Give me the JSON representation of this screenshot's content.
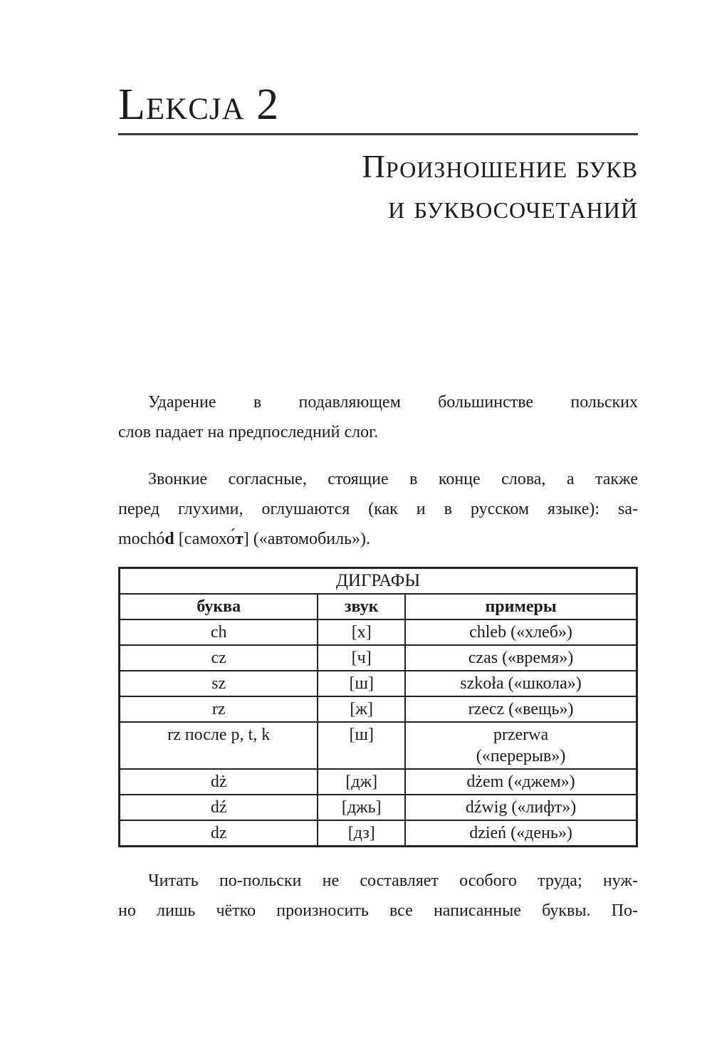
{
  "colors": {
    "background": "#ffffff",
    "text": "#1b1b1b",
    "rule": "#3a3a3a",
    "table_border": "#222222"
  },
  "heading": {
    "lesson": "Lekcja 2",
    "title_line1": "Произношение букв",
    "title_line2": "и буквосочетаний"
  },
  "paragraphs": {
    "p1": {
      "line1": "Ударение в подавляющем большинстве польских",
      "line2": "слов падает на предпоследний слог."
    },
    "p2": {
      "line1": "Звонкие согласные, стоящие в конце слова, а также",
      "line2": "перед глухими, оглушаются (как и в русском языке): sa-",
      "line3_parts": [
        "mochó",
        "d",
        " [самохо́",
        "т",
        "] («автомобиль»)."
      ]
    },
    "p3": {
      "line1": "Читать по-польски не составляет особого труда; нуж-",
      "line2": "но лишь чётко произносить все написанные буквы. По-"
    }
  },
  "table": {
    "title": "ДИГРАФЫ",
    "headers": [
      "буква",
      "звук",
      "примеры"
    ],
    "rows": [
      {
        "letter": "ch",
        "sound": "[х]",
        "example": "chleb («хлеб»)"
      },
      {
        "letter": "cz",
        "sound": "[ч]",
        "example": "czas («время»)"
      },
      {
        "letter": "sz",
        "sound": "[ш]",
        "example": "szkoła («школа»)"
      },
      {
        "letter": "rz",
        "sound": "[ж]",
        "example": "rzecz («вещь»)"
      },
      {
        "letter": "rz после p, t, k",
        "sound": "[ш]",
        "example": "przerwa\n(«перерыв»)"
      },
      {
        "letter": "dż",
        "sound": "[дж]",
        "example": "dżem («джем»)"
      },
      {
        "letter": "dź",
        "sound": "[джь]",
        "example": "dźwig («лифт»)"
      },
      {
        "letter": "dz",
        "sound": "[дз]",
        "example": "dzień («день»)"
      }
    ]
  }
}
